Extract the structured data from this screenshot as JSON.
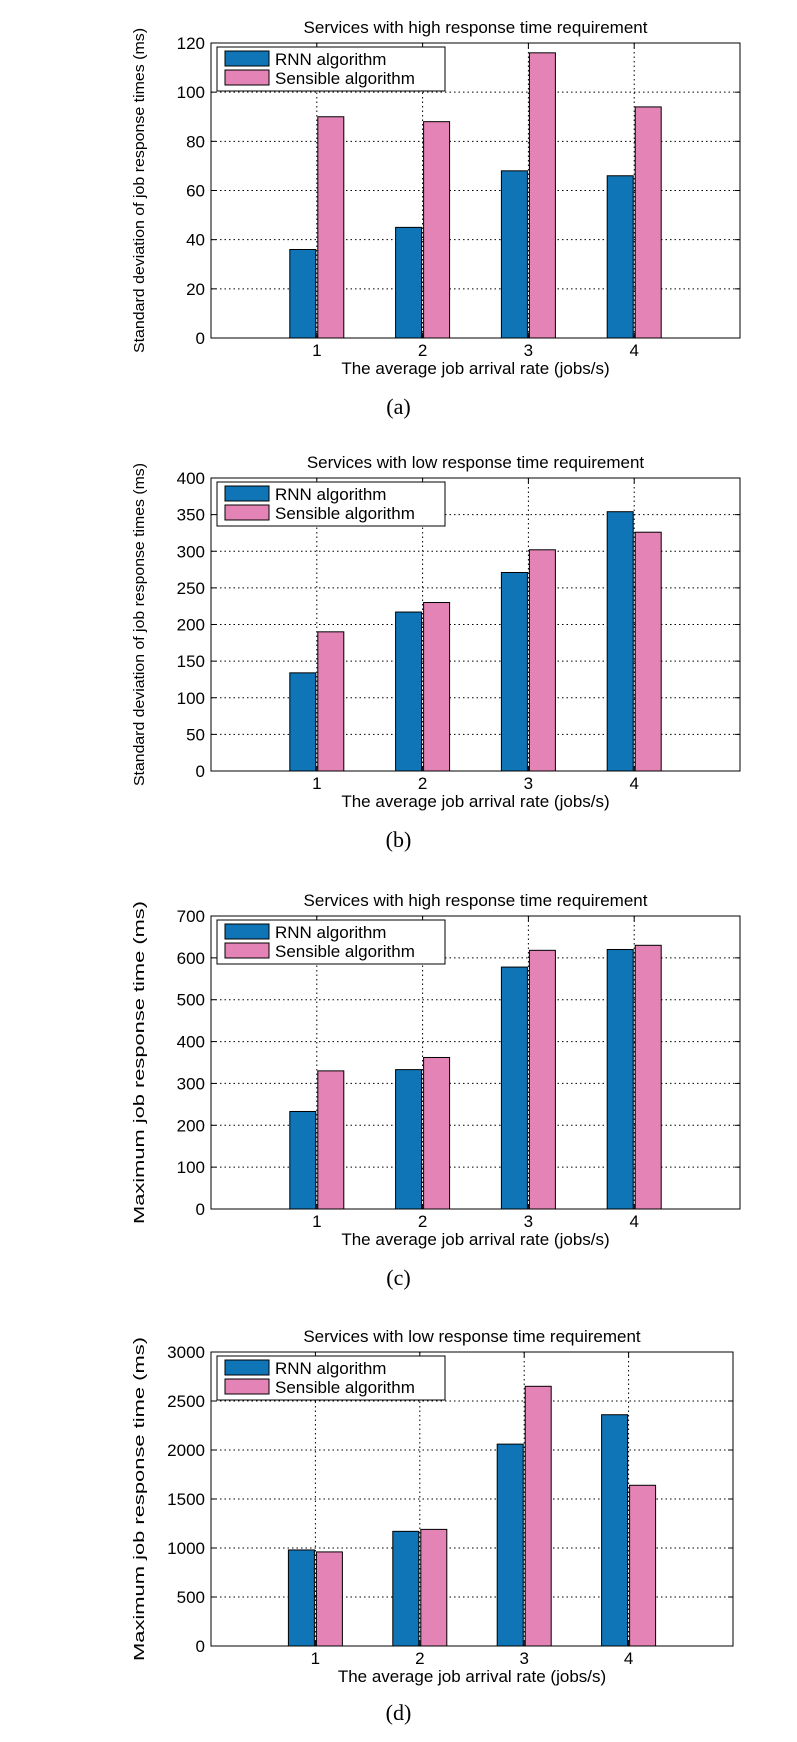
{
  "colors": {
    "rnn": "#0f75b6",
    "sensible": "#e483b5",
    "axis": "#000000",
    "grid": "#000000"
  },
  "chart_data": [
    {
      "type": "bar",
      "caption": "(a)",
      "title": "Services with high response time requirement",
      "xlabel": "The average job arrival rate (jobs/s)",
      "ylabel": "Standard deviation of job response times (ms)",
      "categories": [
        "1",
        "2",
        "3",
        "4"
      ],
      "xlim": [
        0,
        5
      ],
      "ylim": [
        0,
        120
      ],
      "yticks": [
        0,
        20,
        40,
        60,
        80,
        100,
        120
      ],
      "grid": true,
      "legend_position": "top-left",
      "series": [
        {
          "name": "RNN algorithm",
          "color": "#0f75b6",
          "values": [
            36,
            45,
            68,
            66
          ]
        },
        {
          "name": "Sensible algorithm",
          "color": "#e483b5",
          "values": [
            90,
            88,
            116,
            94
          ]
        }
      ]
    },
    {
      "type": "bar",
      "caption": "(b)",
      "title": "Services with low response time requirement",
      "xlabel": "The average job arrival rate (jobs/s)",
      "ylabel": "Standard deviation of job response times (ms)",
      "categories": [
        "1",
        "2",
        "3",
        "4"
      ],
      "xlim": [
        0,
        5
      ],
      "ylim": [
        0,
        400
      ],
      "yticks": [
        0,
        50,
        100,
        150,
        200,
        250,
        300,
        350,
        400
      ],
      "grid": true,
      "legend_position": "top-left",
      "series": [
        {
          "name": "RNN algorithm",
          "color": "#0f75b6",
          "values": [
            134,
            217,
            271,
            354
          ]
        },
        {
          "name": "Sensible algorithm",
          "color": "#e483b5",
          "values": [
            190,
            230,
            302,
            326
          ]
        }
      ]
    },
    {
      "type": "bar",
      "caption": "(c)",
      "title": "Services with high response time requirement",
      "xlabel": "The average job arrival rate (jobs/s)",
      "ylabel": "Maximum job response time (ms)",
      "categories": [
        "1",
        "2",
        "3",
        "4"
      ],
      "xlim": [
        0,
        5
      ],
      "ylim": [
        0,
        700
      ],
      "yticks": [
        0,
        100,
        200,
        300,
        400,
        500,
        600,
        700
      ],
      "grid": true,
      "legend_position": "top-left",
      "series": [
        {
          "name": "RNN algorithm",
          "color": "#0f75b6",
          "values": [
            233,
            333,
            578,
            620
          ]
        },
        {
          "name": "Sensible algorithm",
          "color": "#e483b5",
          "values": [
            330,
            362,
            618,
            630
          ]
        }
      ]
    },
    {
      "type": "bar",
      "caption": "(d)",
      "title": "Services with low response time requirement",
      "xlabel": "The average job arrival rate (jobs/s)",
      "ylabel": "Maximum job response time (ms)",
      "categories": [
        "1",
        "2",
        "3",
        "4"
      ],
      "xlim": [
        0,
        5
      ],
      "ylim": [
        0,
        3000
      ],
      "yticks": [
        0,
        500,
        1000,
        1500,
        2000,
        2500,
        3000
      ],
      "grid": true,
      "legend_position": "top-left",
      "series": [
        {
          "name": "RNN algorithm",
          "color": "#0f75b6",
          "values": [
            980,
            1170,
            2060,
            2360
          ]
        },
        {
          "name": "Sensible algorithm",
          "color": "#e483b5",
          "values": [
            960,
            1190,
            2650,
            1640
          ]
        }
      ]
    }
  ]
}
